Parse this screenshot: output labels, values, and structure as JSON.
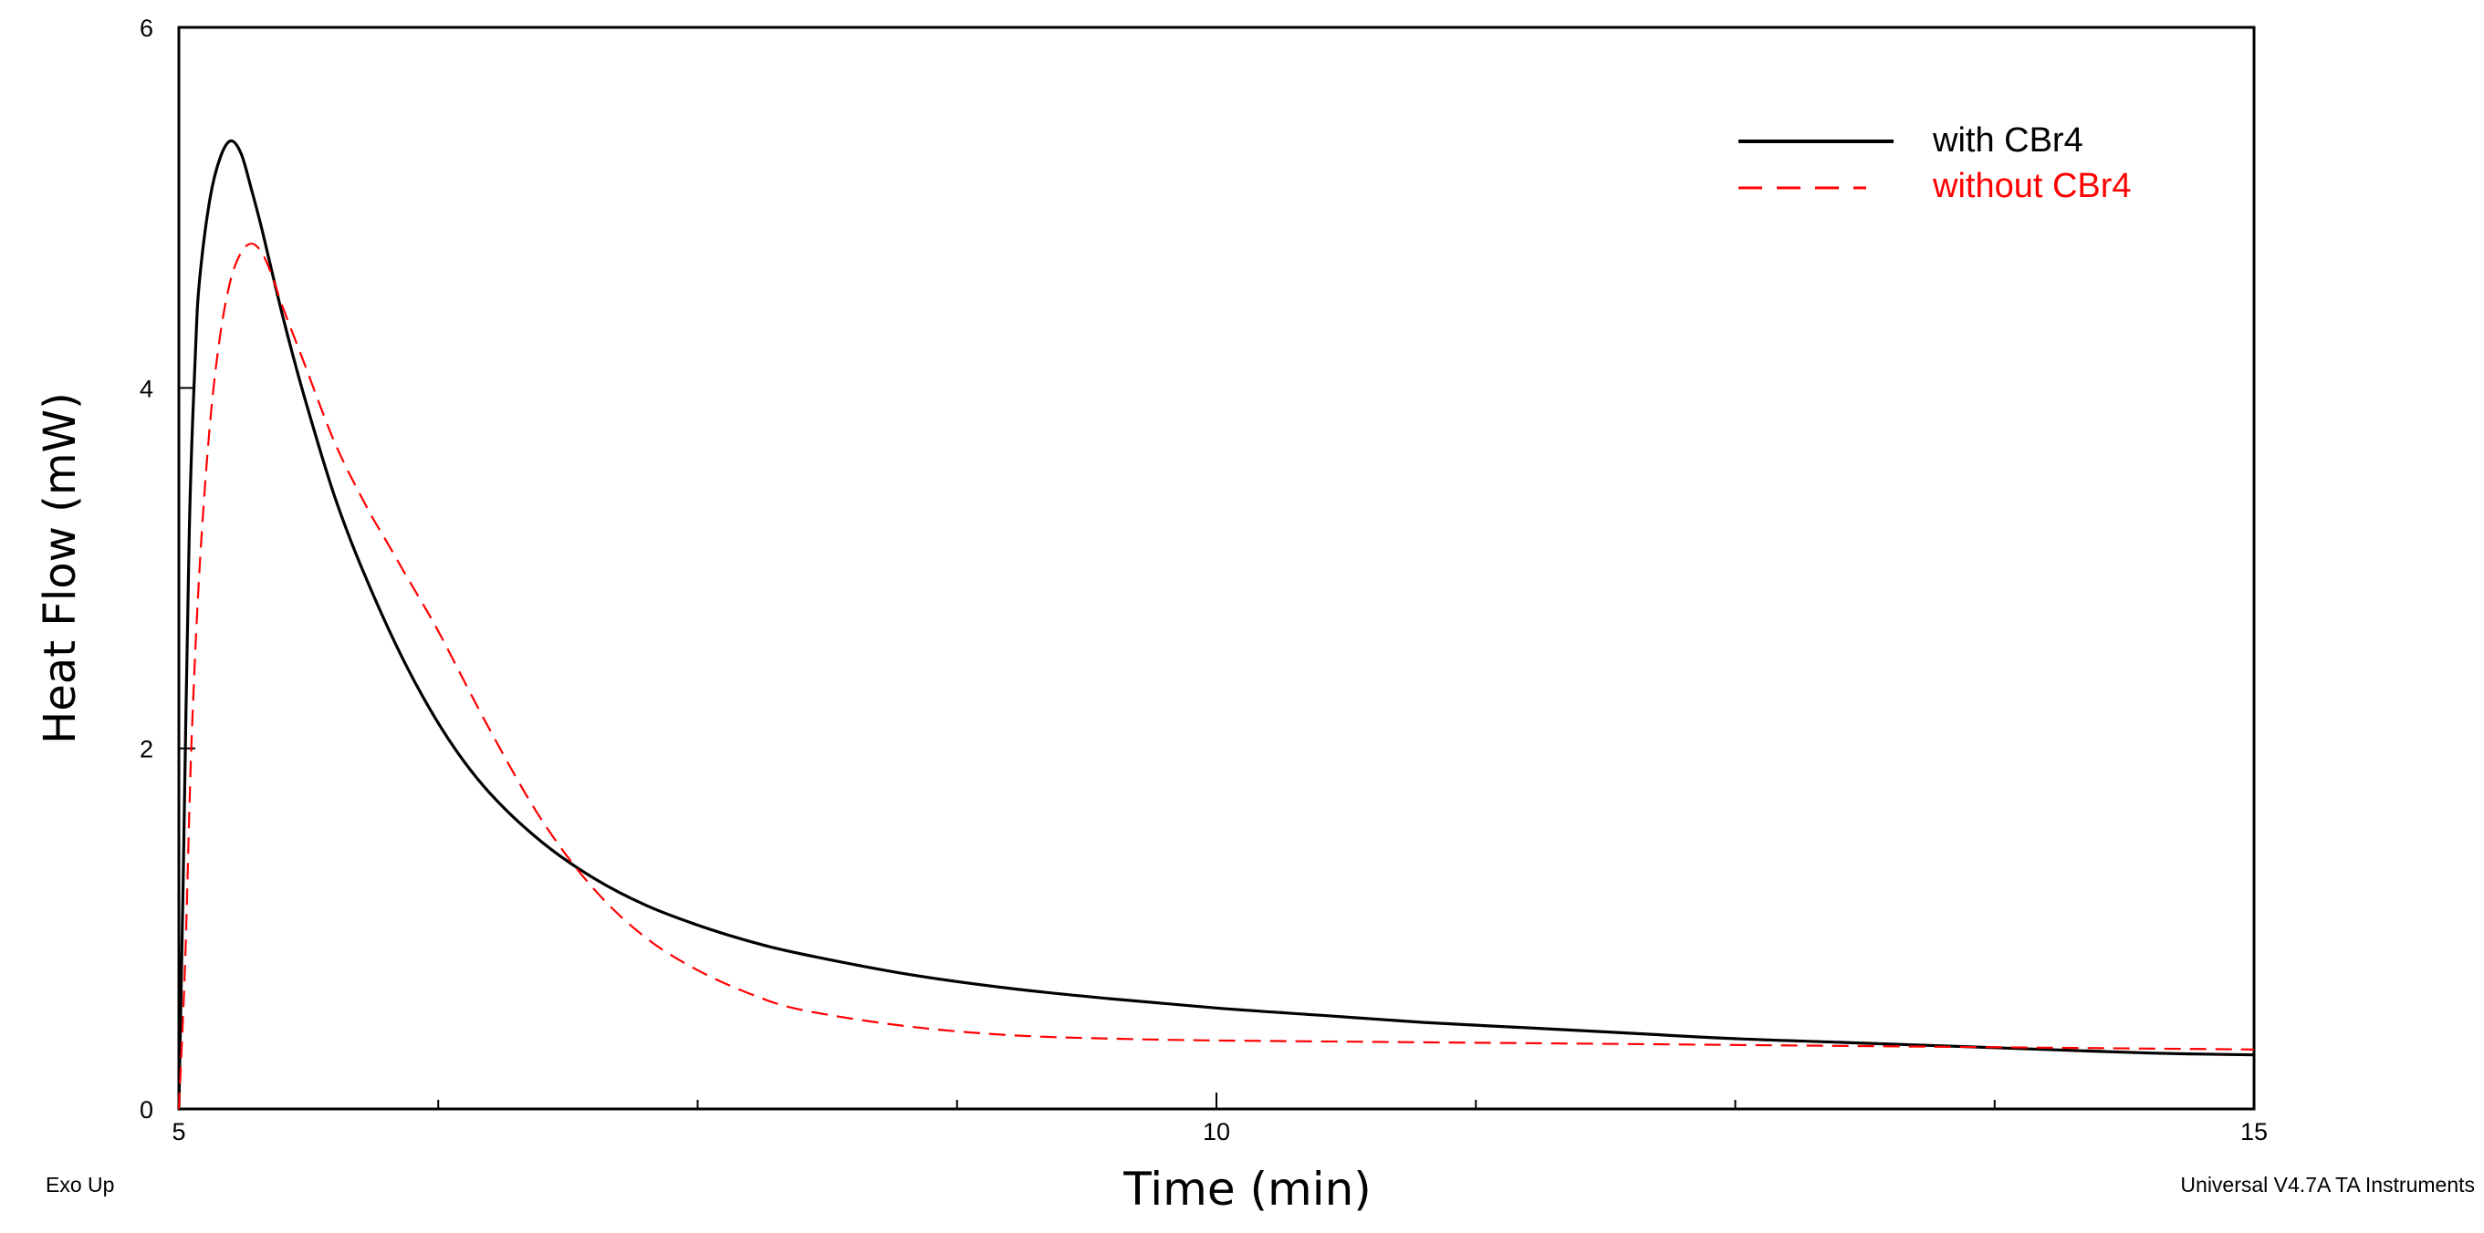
{
  "chart_data": {
    "type": "line",
    "xlabel": "Time (min)",
    "ylabel": "Heat Flow (mW)",
    "xlim": [
      5,
      15
    ],
    "ylim": [
      0,
      6
    ],
    "x_ticks": [
      5,
      10,
      15
    ],
    "x_minor_ticks": [
      6.25,
      7.5,
      8.75,
      11.25,
      12.5,
      13.75
    ],
    "y_ticks": [
      0,
      2,
      4,
      6
    ],
    "grid": false,
    "legend_position": "top-right",
    "series": [
      {
        "name": "with CBr4",
        "color": "#000000",
        "style": "solid",
        "x": [
          5.0,
          5.02,
          5.05,
          5.08,
          5.1,
          5.15,
          5.2,
          5.25,
          5.3,
          5.35,
          5.4,
          5.5,
          5.6,
          5.75,
          5.9,
          6.1,
          6.3,
          6.5,
          6.75,
          7.0,
          7.25,
          7.5,
          7.75,
          8.0,
          8.5,
          9.0,
          9.5,
          10.0,
          10.5,
          11.0,
          11.5,
          12.0,
          12.5,
          13.0,
          13.5,
          14.0,
          14.5,
          15.0
        ],
        "y": [
          0.0,
          1.2,
          3.2,
          4.2,
          4.6,
          5.05,
          5.28,
          5.37,
          5.3,
          5.1,
          4.88,
          4.4,
          3.97,
          3.4,
          2.95,
          2.45,
          2.05,
          1.75,
          1.48,
          1.28,
          1.13,
          1.02,
          0.93,
          0.86,
          0.75,
          0.67,
          0.61,
          0.56,
          0.52,
          0.48,
          0.45,
          0.42,
          0.39,
          0.37,
          0.35,
          0.33,
          0.31,
          0.3
        ]
      },
      {
        "name": "without CBr4",
        "color": "#ff0000",
        "style": "dashed",
        "x": [
          5.0,
          5.03,
          5.06,
          5.1,
          5.15,
          5.2,
          5.25,
          5.3,
          5.35,
          5.4,
          5.45,
          5.5,
          5.6,
          5.75,
          5.9,
          6.0,
          6.1,
          6.25,
          6.5,
          6.75,
          7.0,
          7.25,
          7.5,
          7.75,
          8.0,
          8.5,
          9.0,
          9.5,
          10.0,
          11.0,
          12.0,
          13.0,
          14.0,
          15.0
        ],
        "y": [
          0.0,
          0.8,
          2.0,
          3.0,
          3.8,
          4.3,
          4.6,
          4.75,
          4.8,
          4.75,
          4.62,
          4.45,
          4.15,
          3.7,
          3.35,
          3.15,
          2.95,
          2.65,
          2.1,
          1.6,
          1.22,
          0.95,
          0.77,
          0.64,
          0.55,
          0.46,
          0.41,
          0.39,
          0.38,
          0.37,
          0.36,
          0.35,
          0.34,
          0.33
        ]
      }
    ]
  },
  "footer": {
    "left_note": "Exo Up",
    "right_note": "Universal V4.7A TA Instruments"
  }
}
